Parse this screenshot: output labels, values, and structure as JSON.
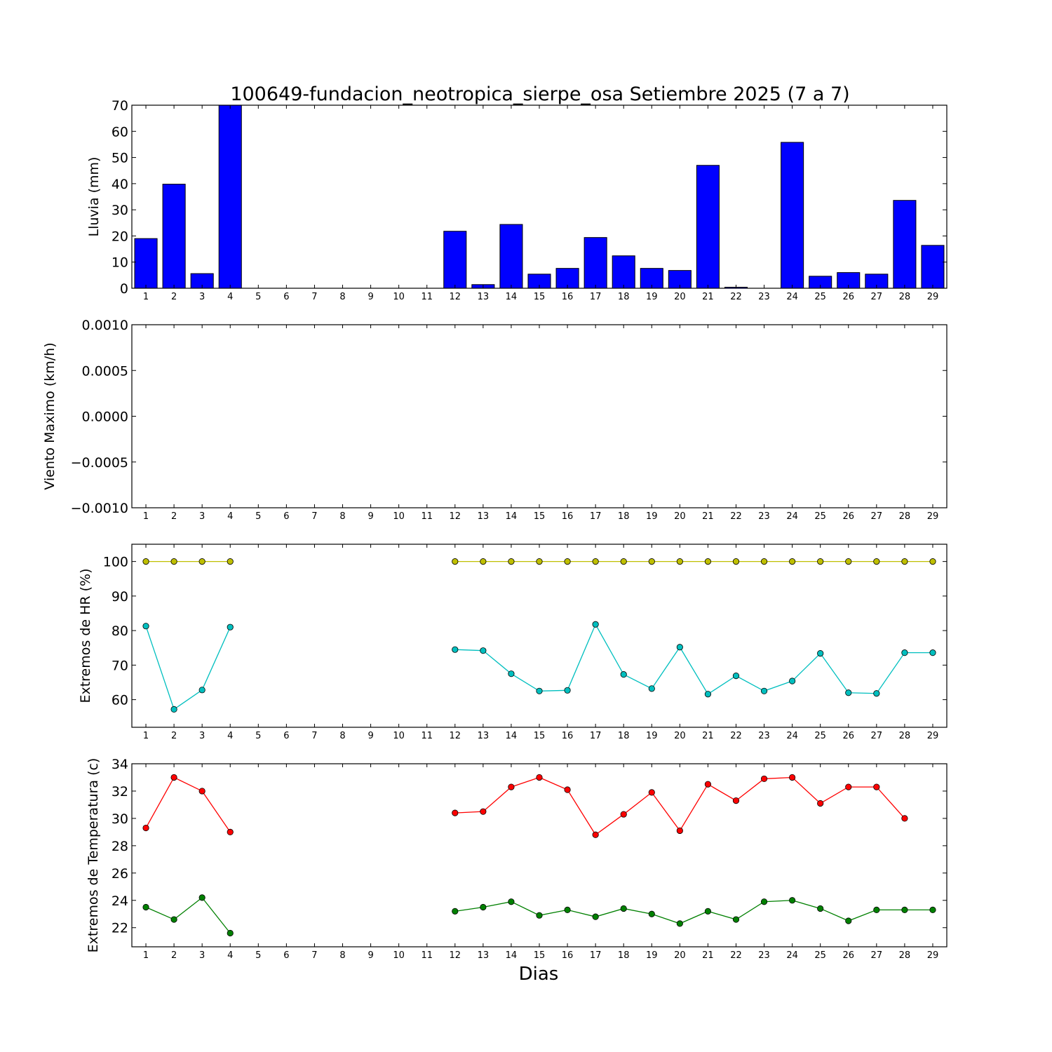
{
  "chart_data": {
    "title": "100649-fundacion_neotropica_sierpe_osa Setiembre 2025  (7 a 7)",
    "xlabel": "Dias",
    "days": [
      1,
      2,
      3,
      4,
      5,
      6,
      7,
      8,
      9,
      10,
      11,
      12,
      13,
      14,
      15,
      16,
      17,
      18,
      19,
      20,
      21,
      22,
      23,
      24,
      25,
      26,
      27,
      28,
      29
    ],
    "panels": [
      {
        "type": "bar",
        "ylabel": "Lluvia (mm)",
        "ylim": [
          0,
          70
        ],
        "yticks": [
          "0",
          "10",
          "20",
          "30",
          "40",
          "50",
          "60",
          "70"
        ],
        "ytick_values": [
          0,
          10,
          20,
          30,
          40,
          50,
          60,
          70
        ],
        "series": [
          {
            "color": "#0000ff",
            "values": [
              19.0,
              39.8,
              5.6,
              70.0,
              0,
              0,
              0,
              0,
              0,
              0,
              0,
              21.8,
              1.4,
              24.4,
              5.4,
              7.6,
              19.4,
              12.4,
              7.6,
              6.8,
              47.0,
              0.4,
              0,
              55.8,
              4.6,
              6.0,
              5.4,
              33.6,
              16.4
            ]
          }
        ]
      },
      {
        "type": "line",
        "ylabel": "Viento Maximo (km/h)",
        "ylim": [
          -0.001,
          0.001
        ],
        "yticks": [
          "−0.0010",
          "−0.0005",
          "0.0000",
          "0.0005",
          "0.0010"
        ],
        "ytick_values": [
          -0.001,
          -0.0005,
          0,
          0.0005,
          0.001
        ],
        "series": []
      },
      {
        "type": "line",
        "ylabel": "Extremos de HR (%)",
        "ylim": [
          52,
          105
        ],
        "yticks": [
          "60",
          "70",
          "80",
          "90",
          "100"
        ],
        "ytick_values": [
          60,
          70,
          80,
          90,
          100
        ],
        "series": [
          {
            "color": "#bfbf00",
            "values": [
              100,
              100,
              100,
              100,
              null,
              null,
              null,
              null,
              null,
              null,
              null,
              100,
              100,
              100,
              100,
              100,
              100,
              100,
              100,
              100,
              100,
              100,
              100,
              100,
              100,
              100,
              100,
              100,
              100
            ]
          },
          {
            "color": "#00bfbf",
            "values": [
              81.3,
              57.2,
              62.8,
              81.0,
              null,
              null,
              null,
              null,
              null,
              null,
              null,
              74.5,
              74.2,
              67.5,
              62.5,
              62.7,
              81.8,
              67.3,
              63.2,
              75.2,
              61.6,
              66.9,
              62.5,
              65.4,
              73.4,
              62.0,
              61.8,
              73.6,
              73.6
            ]
          }
        ]
      },
      {
        "type": "line",
        "ylabel": "Extremos de Temperatura (c)",
        "ylim": [
          20.6,
          34
        ],
        "yticks": [
          "22",
          "24",
          "26",
          "28",
          "30",
          "32",
          "34"
        ],
        "ytick_values": [
          22,
          24,
          26,
          28,
          30,
          32,
          34
        ],
        "series": [
          {
            "color": "#ff0000",
            "values": [
              29.3,
              33.0,
              32.0,
              29.0,
              null,
              null,
              null,
              null,
              null,
              null,
              null,
              30.4,
              30.5,
              32.3,
              33.0,
              32.1,
              28.8,
              30.3,
              31.9,
              29.1,
              32.5,
              31.3,
              32.9,
              33.0,
              31.1,
              32.3,
              32.3,
              30.0,
              null
            ]
          },
          {
            "color": "#008000",
            "values": [
              23.5,
              22.6,
              24.2,
              21.6,
              null,
              null,
              null,
              null,
              null,
              null,
              null,
              23.2,
              23.5,
              23.9,
              22.9,
              23.3,
              22.8,
              23.4,
              23.0,
              22.3,
              23.2,
              22.6,
              23.9,
              24.0,
              23.4,
              22.5,
              23.3,
              23.3,
              23.3
            ]
          }
        ]
      }
    ]
  }
}
